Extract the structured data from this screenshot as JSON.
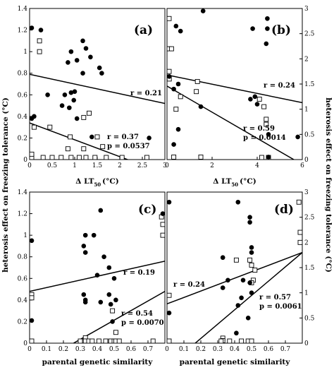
{
  "figure": {
    "ylabel_left": "heterosis effect on freezing tolerance (°C)",
    "ylabel_right": "heterosis effect on freezing tolerance (°C)"
  },
  "chart_data": [
    {
      "id": "a",
      "type": "scatter",
      "label": "(a)",
      "xlabel_main": "Δ LT",
      "xlabel_sub": "50",
      "xlabel_unit": "(°C)",
      "xlim": [
        0,
        3
      ],
      "ylim": [
        0,
        1.4
      ],
      "xticks": [
        "0",
        "0.5",
        "1",
        "1.5",
        "2",
        "2.5",
        "3"
      ],
      "yticks": [
        "0",
        "0.2",
        "0.4",
        "0.6",
        "0.8",
        "1",
        "1.2",
        "1.4"
      ],
      "ytick_side": "left",
      "filled_points": [
        [
          0.02,
          1.22
        ],
        [
          0.25,
          1.2
        ],
        [
          0.92,
          1.0
        ],
        [
          0.85,
          0.9
        ],
        [
          1.05,
          0.92
        ],
        [
          1.18,
          1.1
        ],
        [
          1.18,
          0.8
        ],
        [
          1.35,
          0.95
        ],
        [
          1.55,
          0.85
        ],
        [
          1.6,
          0.8
        ],
        [
          1.25,
          1.03
        ],
        [
          0.4,
          0.6
        ],
        [
          0.78,
          0.6
        ],
        [
          0.92,
          0.62
        ],
        [
          1.0,
          0.63
        ],
        [
          0.88,
          0.48
        ],
        [
          0.72,
          0.5
        ],
        [
          0.98,
          0.55
        ],
        [
          1.05,
          0.38
        ],
        [
          1.38,
          0.21
        ],
        [
          2.65,
          0.2
        ],
        [
          0.1,
          0.4
        ],
        [
          0.02,
          0.38
        ]
      ],
      "open_points": [
        [
          0.22,
          1.1
        ],
        [
          0.22,
          1.0
        ],
        [
          0.45,
          0.3
        ],
        [
          0.9,
          0.21
        ],
        [
          1.2,
          0.39
        ],
        [
          1.32,
          0.43
        ],
        [
          1.5,
          0.21
        ],
        [
          1.62,
          0.12
        ],
        [
          0.85,
          0.1
        ],
        [
          1.2,
          0.1
        ],
        [
          0.1,
          0.3
        ],
        [
          0.02,
          0.0
        ],
        [
          0.3,
          0.0
        ],
        [
          0.5,
          0.0
        ],
        [
          0.7,
          0.0
        ],
        [
          0.92,
          0.0
        ],
        [
          1.1,
          0.0
        ],
        [
          1.25,
          0.0
        ],
        [
          1.45,
          0.0
        ],
        [
          1.7,
          0.0
        ],
        [
          2.05,
          0.0
        ],
        [
          2.6,
          0.0
        ],
        [
          0.0,
          0.05
        ]
      ],
      "fit_lines": [
        {
          "x": [
            0,
            3
          ],
          "y": [
            0.79,
            0.52
          ]
        },
        {
          "x": [
            0,
            2.3
          ],
          "y": [
            0.34,
            -0.02
          ]
        }
      ],
      "annotations": [
        "r = 0.21",
        "r = 0.37",
        "p = 0.0537"
      ]
    },
    {
      "id": "b",
      "type": "scatter",
      "label": "(b)",
      "xlabel_main": "Δ LT",
      "xlabel_sub": "50",
      "xlabel_unit": "(°C)",
      "xlim": [
        0,
        6
      ],
      "ylim": [
        0,
        3
      ],
      "xticks": [
        "0",
        "2",
        "4",
        "6"
      ],
      "yticks": [
        "0",
        "0.5",
        "1",
        "1.5",
        "2",
        "2.5",
        "3"
      ],
      "ytick_side": "right",
      "filled_points": [
        [
          0.4,
          2.65
        ],
        [
          0.6,
          2.55
        ],
        [
          1.6,
          2.95
        ],
        [
          3.8,
          2.6
        ],
        [
          4.45,
          2.8
        ],
        [
          4.45,
          2.6
        ],
        [
          4.4,
          2.3
        ],
        [
          0.3,
          1.4
        ],
        [
          0.5,
          1.5
        ],
        [
          1.5,
          1.05
        ],
        [
          3.7,
          1.2
        ],
        [
          3.9,
          1.25
        ],
        [
          4.0,
          1.1
        ],
        [
          0.5,
          0.6
        ],
        [
          0.3,
          0.3
        ],
        [
          4.5,
          0.5
        ],
        [
          5.8,
          0.45
        ],
        [
          4.5,
          0.05
        ],
        [
          0.1,
          1.65
        ]
      ],
      "open_points": [
        [
          0.0,
          2.8
        ],
        [
          0.0,
          2.2
        ],
        [
          0.2,
          2.2
        ],
        [
          0.0,
          1.75
        ],
        [
          0.1,
          1.6
        ],
        [
          1.35,
          1.55
        ],
        [
          1.3,
          1.35
        ],
        [
          0.6,
          1.25
        ],
        [
          4.1,
          1.2
        ],
        [
          4.3,
          1.05
        ],
        [
          4.4,
          0.8
        ],
        [
          4.4,
          0.7
        ],
        [
          0.4,
          1.0
        ],
        [
          0.3,
          0.05
        ],
        [
          1.5,
          0.05
        ],
        [
          4.2,
          0.0
        ],
        [
          4.5,
          0.0
        ]
      ],
      "fit_lines": [
        {
          "x": [
            0,
            6
          ],
          "y": [
            1.68,
            1.13
          ]
        },
        {
          "x": [
            0,
            5.7
          ],
          "y": [
            1.46,
            -0.02
          ]
        }
      ],
      "annotations": [
        "r = 0.24",
        "r = 0.59",
        "p = 0.0014"
      ]
    },
    {
      "id": "c",
      "type": "scatter",
      "label": "(c)",
      "xlabel_main": "parental genetic similarity",
      "xlim": [
        0,
        0.8
      ],
      "ylim": [
        0,
        1.4
      ],
      "xticks": [
        "0",
        "0.1",
        "0.2",
        "0.3",
        "0.4",
        "0.5",
        "0.6",
        "0.7"
      ],
      "yticks": [
        "0",
        "0.2",
        "0.4",
        "0.6",
        "0.8",
        "1",
        "1.2",
        "1.4"
      ],
      "ytick_side": "left",
      "filled_points": [
        [
          0.01,
          0.95
        ],
        [
          0.33,
          1.0
        ],
        [
          0.38,
          1.0
        ],
        [
          0.32,
          0.9
        ],
        [
          0.33,
          0.84
        ],
        [
          0.42,
          1.23
        ],
        [
          0.44,
          0.8
        ],
        [
          0.47,
          0.7
        ],
        [
          0.5,
          0.6
        ],
        [
          0.4,
          0.63
        ],
        [
          0.32,
          0.45
        ],
        [
          0.33,
          0.4
        ],
        [
          0.33,
          0.38
        ],
        [
          0.42,
          0.38
        ],
        [
          0.47,
          0.45
        ],
        [
          0.48,
          0.36
        ],
        [
          0.51,
          0.4
        ],
        [
          0.49,
          0.2
        ],
        [
          0.01,
          0.21
        ],
        [
          0.79,
          1.2
        ]
      ],
      "open_points": [
        [
          0.78,
          1.17
        ],
        [
          0.79,
          1.1
        ],
        [
          0.79,
          1.0
        ],
        [
          0.01,
          0.45
        ],
        [
          0.01,
          0.42
        ],
        [
          0.49,
          0.3
        ],
        [
          0.51,
          0.1
        ],
        [
          0.33,
          0.05
        ],
        [
          0.33,
          0.02
        ],
        [
          0.01,
          0.0
        ],
        [
          0.3,
          0.0
        ],
        [
          0.35,
          0.0
        ],
        [
          0.37,
          0.0
        ],
        [
          0.41,
          0.0
        ],
        [
          0.45,
          0.0
        ],
        [
          0.48,
          0.0
        ],
        [
          0.5,
          0.0
        ],
        [
          0.51,
          0.0
        ],
        [
          0.53,
          0.0
        ],
        [
          0.73,
          0.0
        ]
      ],
      "fit_lines": [
        {
          "x": [
            0,
            0.8
          ],
          "y": [
            0.48,
            0.76
          ]
        },
        {
          "x": [
            0.26,
            0.8
          ],
          "y": [
            0.0,
            0.48
          ]
        }
      ],
      "annotations": [
        "r = 0.19",
        "r = 0.54",
        "p = 0.0070"
      ]
    },
    {
      "id": "d",
      "type": "scatter",
      "label": "(d)",
      "xlabel_main": "parental genetic similarity",
      "xlim": [
        0,
        0.8
      ],
      "ylim": [
        0,
        3
      ],
      "xticks": [
        "0",
        "0.1",
        "0.2",
        "0.3",
        "0.4",
        "0.5",
        "0.6",
        "0.7"
      ],
      "yticks": [
        "0",
        "0.5",
        "1",
        "1.5",
        "2",
        "2.5",
        "3"
      ],
      "ytick_side": "right",
      "filled_points": [
        [
          0.01,
          2.8
        ],
        [
          0.42,
          2.8
        ],
        [
          0.49,
          2.5
        ],
        [
          0.49,
          2.4
        ],
        [
          0.5,
          1.8
        ],
        [
          0.33,
          1.7
        ],
        [
          0.36,
          1.25
        ],
        [
          0.33,
          1.1
        ],
        [
          0.45,
          1.25
        ],
        [
          0.49,
          1.2
        ],
        [
          0.5,
          1.0
        ],
        [
          0.44,
          0.9
        ],
        [
          0.42,
          0.75
        ],
        [
          0.48,
          0.5
        ],
        [
          0.41,
          0.2
        ],
        [
          0.01,
          0.6
        ],
        [
          0.5,
          1.9
        ]
      ],
      "open_points": [
        [
          0.78,
          2.8
        ],
        [
          0.79,
          2.2
        ],
        [
          0.79,
          2.0
        ],
        [
          0.41,
          1.65
        ],
        [
          0.49,
          1.65
        ],
        [
          0.5,
          1.55
        ],
        [
          0.52,
          1.45
        ],
        [
          0.51,
          1.25
        ],
        [
          0.5,
          1.2
        ],
        [
          0.01,
          0.95
        ],
        [
          0.33,
          0.1
        ],
        [
          0.33,
          0.05
        ],
        [
          0.01,
          0.0
        ],
        [
          0.32,
          0.0
        ],
        [
          0.37,
          0.0
        ],
        [
          0.44,
          0.0
        ],
        [
          0.48,
          0.0
        ],
        [
          0.5,
          0.0
        ]
      ],
      "fit_lines": [
        {
          "x": [
            0,
            0.8
          ],
          "y": [
            0.78,
            1.8
          ]
        },
        {
          "x": [
            0.16,
            0.8
          ],
          "y": [
            -0.02,
            1.8
          ]
        }
      ],
      "annotations": [
        "r = 0.24",
        "r = 0.57",
        "p = 0.0061"
      ]
    }
  ]
}
